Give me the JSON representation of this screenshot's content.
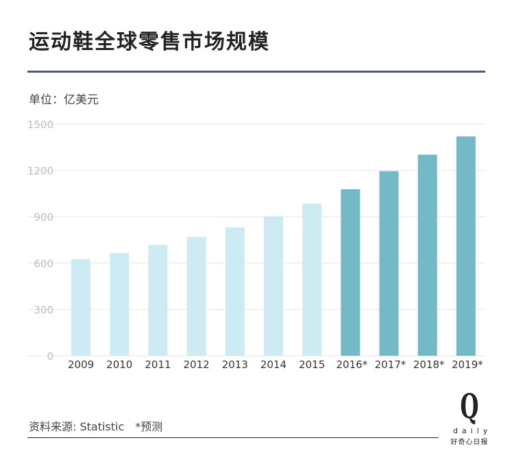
{
  "page": {
    "title": "运动鞋全球零售市场规模",
    "unit_label": "单位：亿美元",
    "source": "资料来源: Statistic　*预测",
    "logo": {
      "letter": "Q",
      "word": "daily",
      "tagline": "好奇心日报"
    }
  },
  "colors": {
    "actual_bar": "#ccebf2",
    "forecast_bar": "#74b9c6",
    "title_rule": "#44568a",
    "gridline": "#e6e6e6"
  },
  "chart_data": {
    "type": "bar",
    "title": "运动鞋全球零售市场规模",
    "ylabel": "单位：亿美元",
    "xlabel": "",
    "ylim": [
      0,
      1500
    ],
    "yticks": [
      0,
      300,
      600,
      900,
      1200,
      1500
    ],
    "grid": true,
    "categories": [
      "2009",
      "2010",
      "2011",
      "2012",
      "2013",
      "2014",
      "2015",
      "2016*",
      "2017*",
      "2018*",
      "2019*"
    ],
    "values": [
      626,
      665,
      718,
      770,
      831,
      903,
      985,
      1078,
      1195,
      1302,
      1420
    ],
    "forecast": [
      false,
      false,
      false,
      false,
      false,
      false,
      false,
      true,
      true,
      true,
      true
    ]
  }
}
